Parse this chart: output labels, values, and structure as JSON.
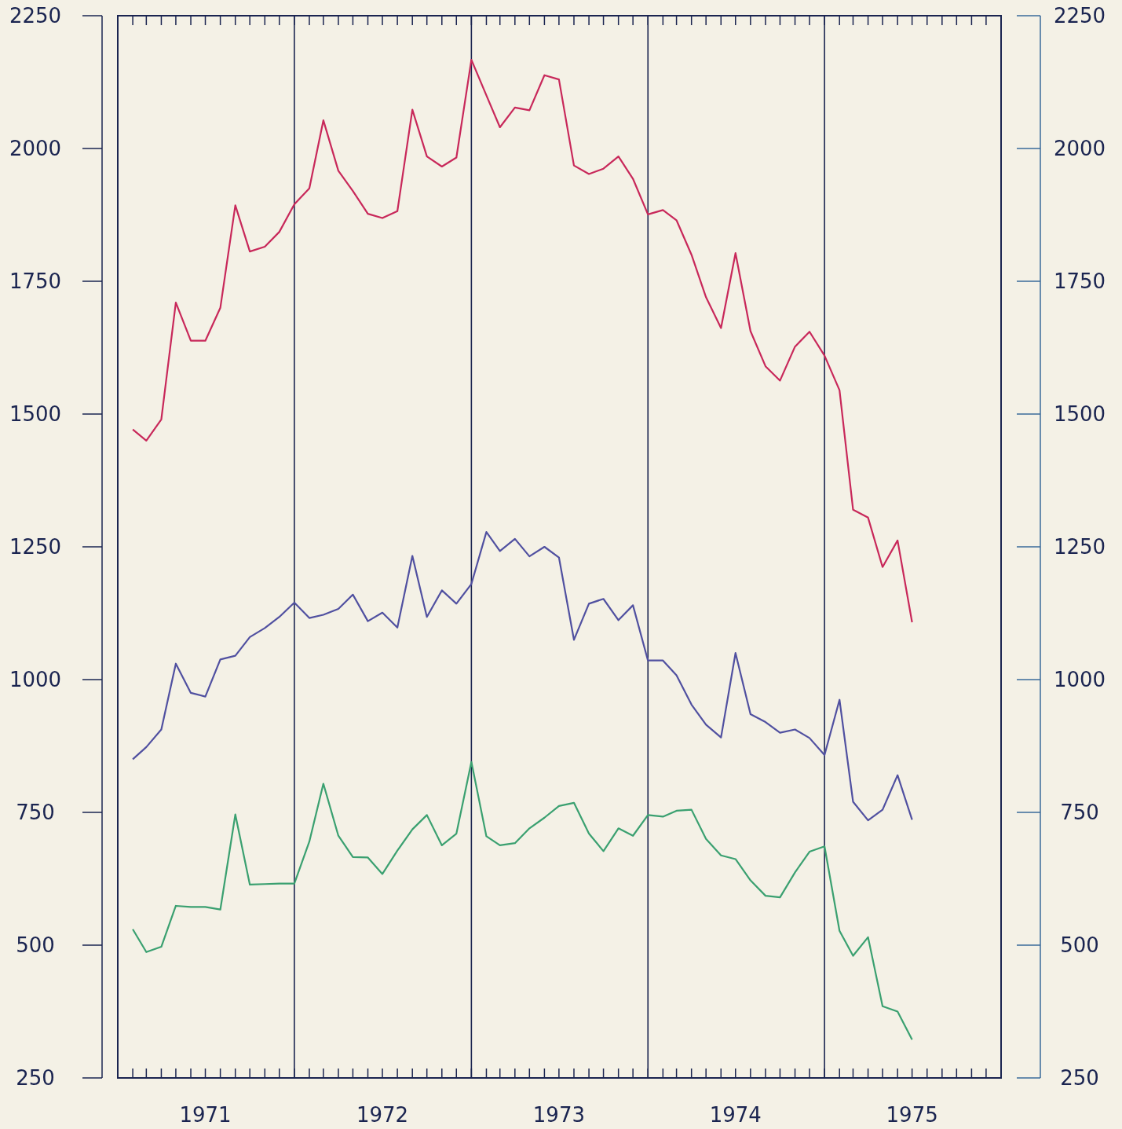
{
  "chart_data": {
    "type": "line",
    "x": [
      "1971-02",
      "1971-03",
      "1971-04",
      "1971-05",
      "1971-06",
      "1971-07",
      "1971-08",
      "1971-09",
      "1971-10",
      "1971-11",
      "1971-12",
      "1972-01",
      "1972-02",
      "1972-03",
      "1972-04",
      "1972-05",
      "1972-06",
      "1972-07",
      "1972-08",
      "1972-09",
      "1972-10",
      "1972-11",
      "1972-12",
      "1973-01",
      "1973-02",
      "1973-03",
      "1973-04",
      "1973-05",
      "1973-06",
      "1973-07",
      "1973-08",
      "1973-09",
      "1973-10",
      "1973-11",
      "1973-12",
      "1974-01",
      "1974-02",
      "1974-03",
      "1974-04",
      "1974-05",
      "1974-06",
      "1974-07",
      "1974-08",
      "1974-09",
      "1974-10",
      "1974-11",
      "1974-12",
      "1975-01",
      "1975-02",
      "1975-03",
      "1975-04",
      "1975-05",
      "1975-06",
      "1975-07"
    ],
    "series": [
      {
        "color": "#c8285a",
        "values": [
          1471,
          1450,
          1490,
          1710,
          1638,
          1638,
          1700,
          1893,
          1806,
          1815,
          1843,
          1895,
          1925,
          2053,
          1958,
          1920,
          1877,
          1869,
          1882,
          2073,
          1985,
          1966,
          1983,
          2167,
          2100,
          2040,
          2077,
          2072,
          2138,
          2130,
          1968,
          1952,
          1962,
          1985,
          1943,
          1876,
          1884,
          1865,
          1800,
          1720,
          1662,
          1803,
          1656,
          1590,
          1563,
          1627,
          1655,
          1610,
          1545,
          1320,
          1305,
          1212,
          1262,
          1108
        ]
      },
      {
        "color": "#5050a0",
        "values": [
          850,
          873,
          906,
          1030,
          975,
          968,
          1038,
          1045,
          1080,
          1097,
          1118,
          1145,
          1116,
          1122,
          1133,
          1160,
          1110,
          1126,
          1098,
          1233,
          1118,
          1168,
          1143,
          1180,
          1278,
          1242,
          1265,
          1232,
          1250,
          1230,
          1075,
          1143,
          1152,
          1112,
          1140,
          1036,
          1036,
          1008,
          953,
          915,
          891,
          1050,
          935,
          920,
          900,
          906,
          890,
          858,
          962,
          770,
          735,
          755,
          820,
          736
        ]
      },
      {
        "color": "#3aa070",
        "values": [
          530,
          487,
          497,
          574,
          572,
          572,
          567,
          746,
          614,
          615,
          616,
          616,
          695,
          804,
          706,
          666,
          665,
          634,
          678,
          718,
          745,
          688,
          710,
          845,
          705,
          688,
          692,
          720,
          740,
          762,
          768,
          710,
          677,
          720,
          706,
          745,
          742,
          753,
          755,
          700,
          669,
          662,
          622,
          593,
          590,
          637,
          676,
          686,
          527,
          480,
          515,
          385,
          375,
          322
        ]
      }
    ],
    "xlim": [
      "1971-01",
      "1976-01"
    ],
    "xticks": [
      {
        "value": "1971-01",
        "label": null
      },
      {
        "value": "1971-02",
        "label": null
      },
      {
        "value": "1971-03",
        "label": null
      },
      {
        "value": "1971-04",
        "label": null
      },
      {
        "value": "1971-05",
        "label": null
      },
      {
        "value": "1971-06",
        "label": null
      },
      {
        "value": "1971-07",
        "label": "1971"
      },
      {
        "value": "1971-08",
        "label": null
      },
      {
        "value": "1971-09",
        "label": null
      },
      {
        "value": "1971-10",
        "label": null
      },
      {
        "value": "1971-11",
        "label": null
      },
      {
        "value": "1971-12",
        "label": null
      },
      {
        "value": "1972-01",
        "label": null
      },
      {
        "value": "1972-02",
        "label": null
      },
      {
        "value": "1972-03",
        "label": null
      },
      {
        "value": "1972-04",
        "label": null
      },
      {
        "value": "1972-05",
        "label": null
      },
      {
        "value": "1972-06",
        "label": null
      },
      {
        "value": "1972-07",
        "label": "1972"
      },
      {
        "value": "1972-08",
        "label": null
      },
      {
        "value": "1972-09",
        "label": null
      },
      {
        "value": "1972-10",
        "label": null
      },
      {
        "value": "1972-11",
        "label": null
      },
      {
        "value": "1972-12",
        "label": null
      },
      {
        "value": "1973-01",
        "label": null
      },
      {
        "value": "1973-02",
        "label": null
      },
      {
        "value": "1973-03",
        "label": null
      },
      {
        "value": "1973-04",
        "label": null
      },
      {
        "value": "1973-05",
        "label": null
      },
      {
        "value": "1973-06",
        "label": null
      },
      {
        "value": "1973-07",
        "label": "1973"
      },
      {
        "value": "1973-08",
        "label": null
      },
      {
        "value": "1973-09",
        "label": null
      },
      {
        "value": "1973-10",
        "label": null
      },
      {
        "value": "1973-11",
        "label": null
      },
      {
        "value": "1973-12",
        "label": null
      },
      {
        "value": "1974-01",
        "label": null
      },
      {
        "value": "1974-02",
        "label": null
      },
      {
        "value": "1974-03",
        "label": null
      },
      {
        "value": "1974-04",
        "label": null
      },
      {
        "value": "1974-05",
        "label": null
      },
      {
        "value": "1974-06",
        "label": null
      },
      {
        "value": "1974-07",
        "label": "1974"
      },
      {
        "value": "1974-08",
        "label": null
      },
      {
        "value": "1974-09",
        "label": null
      },
      {
        "value": "1974-10",
        "label": null
      },
      {
        "value": "1974-11",
        "label": null
      },
      {
        "value": "1974-12",
        "label": null
      },
      {
        "value": "1975-01",
        "label": null
      },
      {
        "value": "1975-02",
        "label": null
      },
      {
        "value": "1975-03",
        "label": null
      },
      {
        "value": "1975-04",
        "label": null
      },
      {
        "value": "1975-05",
        "label": null
      },
      {
        "value": "1975-06",
        "label": null
      },
      {
        "value": "1975-07",
        "label": "1975"
      },
      {
        "value": "1975-08",
        "label": null
      },
      {
        "value": "1975-09",
        "label": null
      },
      {
        "value": "1975-10",
        "label": null
      },
      {
        "value": "1975-11",
        "label": null
      },
      {
        "value": "1975-12",
        "label": null
      },
      {
        "value": "1976-01",
        "label": null
      }
    ],
    "ylim": [
      250,
      2250
    ],
    "yticks": [
      250,
      500,
      750,
      1000,
      1250,
      1500,
      1750,
      2000,
      2250
    ],
    "y2lim": [
      250,
      2250
    ],
    "y2ticks": [
      250,
      500,
      750,
      1000,
      1250,
      1500,
      1750,
      2000,
      2250
    ],
    "ref_lines": [
      {
        "axis": "x",
        "value": "1972-01",
        "color": "#1a2450"
      },
      {
        "axis": "x",
        "value": "1973-01",
        "color": "#1a2450"
      },
      {
        "axis": "x",
        "value": "1974-01",
        "color": "#1a2450"
      },
      {
        "axis": "x",
        "value": "1975-01",
        "color": "#1a2450"
      }
    ]
  }
}
